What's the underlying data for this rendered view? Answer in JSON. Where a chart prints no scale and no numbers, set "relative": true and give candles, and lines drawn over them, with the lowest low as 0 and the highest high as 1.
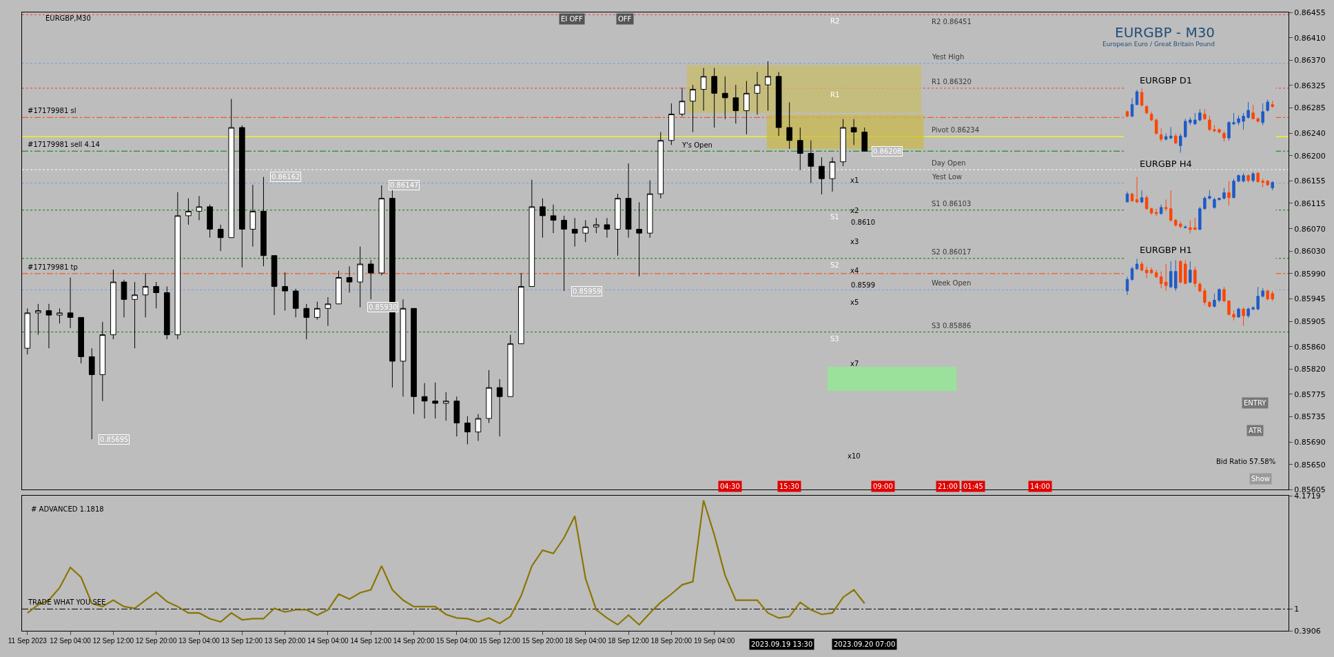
{
  "chart_data": [
    {
      "type": "candlestick",
      "title": "EURGBP - M30",
      "subtitle": "European Euro / Great Britain Pound",
      "color": "#000000",
      "categories": [
        null,
        null,
        null,
        null,
        null,
        null,
        null,
        null,
        null,
        null,
        null,
        null,
        null,
        null,
        null,
        null,
        null,
        null,
        null,
        null,
        null,
        null,
        null,
        null,
        null,
        null,
        null,
        null,
        null,
        null,
        null,
        null,
        null,
        null,
        null,
        null,
        null,
        null,
        null,
        null,
        null,
        null,
        null,
        null,
        null,
        null,
        null,
        null,
        null,
        null,
        null,
        null,
        null,
        null,
        null,
        null,
        null,
        null,
        null,
        null,
        null,
        null,
        null,
        null,
        null,
        null,
        null,
        null,
        null,
        null,
        null,
        null,
        null,
        null,
        null,
        null,
        null,
        null,
        null,
        null,
        null,
        null,
        null,
        null,
        null,
        null,
        null,
        null,
        null,
        null,
        null,
        null,
        null,
        null,
        null,
        null,
        null,
        null,
        null,
        null,
        null,
        null,
        null,
        null,
        null,
        null,
        null,
        null,
        null,
        null,
        null,
        null,
        null,
        null,
        null,
        null,
        null,
        null
      ],
      "ohlc": [
        [
          0.85857,
          0.85928,
          0.85846,
          0.8592
        ],
        [
          0.8592,
          0.85936,
          0.85881,
          0.85924
        ],
        [
          0.85924,
          0.85936,
          0.85857,
          0.85916
        ],
        [
          0.85916,
          0.85928,
          0.85901,
          0.8592
        ],
        [
          0.8592,
          0.85983,
          0.85893,
          0.85912
        ],
        [
          0.85912,
          0.85912,
          0.8583,
          0.85842
        ],
        [
          0.85842,
          0.85857,
          0.85695,
          0.8581
        ],
        [
          0.8581,
          0.85904,
          0.85763,
          0.85881
        ],
        [
          0.85881,
          0.85997,
          0.85873,
          0.85975
        ],
        [
          0.85975,
          0.85979,
          0.85912,
          0.85944
        ],
        [
          0.85944,
          0.85975,
          0.85857,
          0.85952
        ],
        [
          0.85952,
          0.85991,
          0.85912,
          0.85967
        ],
        [
          0.85967,
          0.85975,
          0.85928,
          0.85956
        ],
        [
          0.85956,
          0.85967,
          0.85873,
          0.85881
        ],
        [
          0.85881,
          0.86135,
          0.85873,
          0.86093
        ],
        [
          0.86093,
          0.86124,
          0.86077,
          0.86101
        ],
        [
          0.86101,
          0.86128,
          0.86085,
          0.86109
        ],
        [
          0.86109,
          0.86113,
          0.86054,
          0.86069
        ],
        [
          0.86069,
          0.86077,
          0.8603,
          0.86054
        ],
        [
          0.86054,
          0.86301,
          0.86054,
          0.8625
        ],
        [
          0.8625,
          0.86254,
          0.86001,
          0.86069
        ],
        [
          0.86069,
          0.86148,
          0.86038,
          0.86101
        ],
        [
          0.86101,
          0.86162,
          0.86003,
          0.86022
        ],
        [
          0.86022,
          0.86022,
          0.85916,
          0.85967
        ],
        [
          0.85967,
          0.85992,
          0.85924,
          0.85959
        ],
        [
          0.85959,
          0.85963,
          0.85912,
          0.85928
        ],
        [
          0.85928,
          0.85936,
          0.85873,
          0.85912
        ],
        [
          0.85912,
          0.8594,
          0.85908,
          0.85928
        ],
        [
          0.85928,
          0.85948,
          0.85897,
          0.85936
        ],
        [
          0.85936,
          0.85995,
          0.85936,
          0.85983
        ],
        [
          0.85983,
          0.86003,
          0.85956,
          0.85975
        ],
        [
          0.85975,
          0.86038,
          0.8593,
          0.86007
        ],
        [
          0.86007,
          0.86014,
          0.85944,
          0.85991
        ],
        [
          0.85991,
          0.86147,
          0.85987,
          0.86124
        ],
        [
          0.86124,
          0.8614,
          0.85787,
          0.85834
        ],
        [
          0.85834,
          0.85944,
          0.85771,
          0.85928
        ],
        [
          0.85928,
          0.85928,
          0.8574,
          0.85771
        ],
        [
          0.85771,
          0.85795,
          0.85732,
          0.85763
        ],
        [
          0.85763,
          0.85796,
          0.85732,
          0.85759
        ],
        [
          0.85759,
          0.85779,
          0.85728,
          0.85763
        ],
        [
          0.85763,
          0.85771,
          0.857,
          0.85724
        ],
        [
          0.85724,
          0.85736,
          0.85686,
          0.85708
        ],
        [
          0.85708,
          0.8574,
          0.85692,
          0.85732
        ],
        [
          0.85732,
          0.85818,
          0.85724,
          0.85787
        ],
        [
          0.85787,
          0.85802,
          0.857,
          0.85771
        ],
        [
          0.85771,
          0.85881,
          0.85771,
          0.85865
        ],
        [
          0.85865,
          0.85991,
          0.85865,
          0.85967
        ],
        [
          0.85967,
          0.86157,
          0.85967,
          0.86109
        ],
        [
          0.86109,
          0.86124,
          0.86054,
          0.86093
        ],
        [
          0.86093,
          0.86113,
          0.86062,
          0.86085
        ],
        [
          0.86085,
          0.86093,
          0.85959,
          0.86069
        ],
        [
          0.86069,
          0.86089,
          0.86038,
          0.86062
        ],
        [
          0.86062,
          0.86085,
          0.86046,
          0.86073
        ],
        [
          0.86073,
          0.86089,
          0.86062,
          0.86077
        ],
        [
          0.86077,
          0.86089,
          0.86054,
          0.86069
        ],
        [
          0.86069,
          0.86132,
          0.86022,
          0.86124
        ],
        [
          0.86124,
          0.86186,
          0.86054,
          0.86069
        ],
        [
          0.86069,
          0.86117,
          0.85985,
          0.86062
        ],
        [
          0.86062,
          0.86156,
          0.86054,
          0.86132
        ],
        [
          0.86132,
          0.86242,
          0.86124,
          0.86227
        ],
        [
          0.86227,
          0.86293,
          0.86219,
          0.86274
        ],
        [
          0.86274,
          0.86321,
          0.8627,
          0.86297
        ],
        [
          0.86297,
          0.86326,
          0.86242,
          0.86318
        ],
        [
          0.86318,
          0.86356,
          0.8628,
          0.86341
        ],
        [
          0.86341,
          0.86356,
          0.8625,
          0.86311
        ],
        [
          0.86311,
          0.86341,
          0.86265,
          0.86303
        ],
        [
          0.86303,
          0.86326,
          0.86257,
          0.8628
        ],
        [
          0.8628,
          0.86333,
          0.86238,
          0.86311
        ],
        [
          0.86311,
          0.86349,
          0.86273,
          0.86326
        ],
        [
          0.86326,
          0.86368,
          0.8628,
          0.86341
        ],
        [
          0.86341,
          0.86349,
          0.86235,
          0.8625
        ],
        [
          0.8625,
          0.86295,
          0.86212,
          0.86227
        ],
        [
          0.86227,
          0.8625,
          0.86174,
          0.86204
        ],
        [
          0.86204,
          0.86227,
          0.86151,
          0.86181
        ],
        [
          0.86181,
          0.86197,
          0.86131,
          0.86159
        ],
        [
          0.86159,
          0.86197,
          0.86136,
          0.86189
        ],
        [
          0.86189,
          0.86265,
          0.86181,
          0.8625
        ],
        [
          0.8625,
          0.86265,
          0.86219,
          0.86242
        ],
        [
          0.86242,
          0.8625,
          0.86207,
          0.86208
        ],
        null,
        null,
        null,
        null,
        null,
        null,
        null,
        null,
        null,
        null,
        null,
        null,
        null,
        null,
        null,
        null,
        null,
        null,
        null,
        null,
        null,
        null,
        null,
        null,
        null,
        null,
        null,
        null,
        null,
        null,
        null,
        null,
        null,
        null,
        null,
        null,
        null,
        null,
        null
      ],
      "ylim": [
        0.85605,
        0.86455
      ],
      "yticks": [
        0.86455,
        {
          "value": 0.8641,
          "label": "0.86410"
        },
        {
          "value": 0.8637,
          "label": "0.86370"
        },
        0.86325,
        0.86285,
        {
          "value": 0.8624,
          "label": "0.86240"
        },
        {
          "value": 0.862,
          "label": "0.86200"
        },
        0.86155,
        0.86115,
        {
          "value": 0.8607,
          "label": "0.86070"
        },
        {
          "value": 0.8603,
          "label": "0.86030"
        },
        {
          "value": 0.8599,
          "label": "0.85990"
        },
        0.85945,
        0.85905,
        {
          "value": 0.8586,
          "label": "0.85860"
        },
        {
          "value": 0.8582,
          "label": "0.85820"
        },
        0.85775,
        0.85735,
        {
          "value": 0.8569,
          "label": "0.85690"
        },
        {
          "value": 0.8565,
          "label": "0.85650"
        },
        0.85605
      ],
      "tick_labels": "y",
      "grid": false,
      "ref_lines": [
        {
          "axis": "y",
          "value": 0.86451,
          "label": "R2 0.86451",
          "color": "#ff3030",
          "line_style": "dotted"
        },
        {
          "axis": "y",
          "value": 0.86364,
          "label": "Yest High",
          "color": "#6f9fd8",
          "line_style": "dotted"
        },
        {
          "axis": "y",
          "value": 0.8632,
          "label": "R1 0.86320",
          "color": "#ff3030",
          "line_style": "dotted"
        },
        {
          "axis": "y",
          "value": 0.86268,
          "label": "#17179981 sl",
          "color": "#ff4500",
          "line_style": "dashed"
        },
        {
          "axis": "y",
          "value": 0.86234,
          "label": "Pivot 0.86234",
          "color": "#ffff00",
          "line_style": "solid"
        },
        {
          "axis": "y",
          "value": 0.86208,
          "label": "#17179981 sell 4.14",
          "color": "#008000",
          "line_style": "dashed"
        },
        {
          "axis": "y",
          "value": 0.86175,
          "label": "Day Open",
          "color": "#ffffff",
          "line_style": "dotted"
        },
        {
          "axis": "y",
          "value": 0.86151,
          "label": "Yest Low",
          "color": "#6f9fd8",
          "line_style": "dotted"
        },
        {
          "axis": "y",
          "value": 0.86103,
          "label": "S1 0.86103",
          "color": "#008000",
          "line_style": "dotted"
        },
        {
          "axis": "y",
          "value": 0.86017,
          "label": "S2 0.86017",
          "color": "#008000",
          "line_style": "dotted"
        },
        {
          "axis": "y",
          "value": 0.8599,
          "label": "#17179981 tp",
          "color": "#ff4500",
          "line_style": "dashed"
        },
        {
          "axis": "y",
          "value": 0.85961,
          "label": "Week Open",
          "color": "#6f9fd8",
          "line_style": "dotted"
        },
        {
          "axis": "y",
          "value": 0.85886,
          "label": "S3 0.85886",
          "color": "#008000",
          "line_style": "dotted"
        }
      ],
      "bands": [
        {
          "axis": "y",
          "from": 0.86276,
          "to": 0.86361,
          "color": "#c8bd6a"
        },
        {
          "axis": "y",
          "from": 0.86212,
          "to": 0.86273,
          "color": "#c9b94e"
        },
        {
          "axis": "y",
          "from": 0.85781,
          "to": 0.85824,
          "color": "#90ee90"
        }
      ],
      "annotations": [
        "EURGBP,M30",
        "EI OFF",
        "OFF",
        "ENTRY",
        "ATR",
        "Bid Ratio 57.58%",
        "Show",
        "04:30",
        "15:30",
        "09:00",
        "21:00",
        "01:45",
        "14:00",
        {
          "text": "0.86162",
          "y": 0.86162
        },
        {
          "text": "0.86147",
          "y": 0.86147
        },
        {
          "text": "0.85695",
          "y": 0.85695
        },
        {
          "text": "0.85959",
          "y": 0.85959
        },
        {
          "text": "0.85930",
          "y": 0.8593
        },
        {
          "text": "0.86208",
          "y": 0.86208
        },
        {
          "text": "R2",
          "y": 0.86451
        },
        {
          "text": "R1",
          "y": 0.8632
        },
        {
          "text": "S1",
          "y": 0.86103
        },
        {
          "text": "S2",
          "y": 0.86017
        },
        {
          "text": "S3",
          "y": 0.85886
        },
        "Y's Open",
        "x1",
        "x2",
        "0.8610",
        "x3",
        "x4",
        "0.8599",
        "x5",
        "x7",
        "x10"
      ]
    },
    {
      "type": "line",
      "title": "# ADVANCED 1.1818",
      "color": "#8a7500",
      "categories": [
        "11 Sep 2023",
        null,
        null,
        null,
        "12 Sep 04:00",
        null,
        null,
        null,
        "12 Sep 12:00",
        null,
        null,
        null,
        "12 Sep 20:00",
        null,
        null,
        null,
        "13 Sep 04:00",
        null,
        null,
        null,
        "13 Sep 12:00",
        null,
        null,
        null,
        "13 Sep 20:00",
        null,
        null,
        null,
        "14 Sep 04:00",
        null,
        null,
        null,
        "14 Sep 12:00",
        null,
        null,
        null,
        "14 Sep 20:00",
        null,
        null,
        null,
        "15 Sep 04:00",
        null,
        null,
        null,
        "15 Sep 12:00",
        null,
        null,
        null,
        "15 Sep 20:00",
        null,
        null,
        null,
        "18 Sep 04:00",
        null,
        null,
        null,
        "18 Sep 12:00",
        null,
        null,
        null,
        "18 Sep 20:00",
        null,
        null,
        null,
        "19 Sep 04:00",
        null,
        null,
        null,
        null,
        null,
        null,
        null,
        null,
        null,
        null,
        null,
        null,
        null,
        null,
        null,
        null,
        null,
        null,
        null,
        null,
        null,
        null,
        null,
        null,
        null,
        null,
        null,
        null,
        null,
        null,
        null,
        null,
        null,
        null,
        null,
        null,
        null,
        null,
        null,
        null,
        null,
        null,
        null,
        null,
        null,
        null,
        null,
        null,
        null,
        null,
        null,
        null,
        null
      ],
      "values": [
        0.89,
        1.12,
        1.25,
        1.6,
        2.17,
        1.89,
        1.16,
        1.07,
        1.25,
        1.07,
        1.02,
        1.25,
        1.47,
        1.21,
        1.07,
        0.89,
        0.89,
        0.73,
        0.64,
        0.89,
        0.7,
        0.73,
        0.73,
        1.02,
        0.92,
        0.98,
        0.98,
        0.83,
        0.98,
        1.42,
        1.28,
        1.46,
        1.54,
        2.21,
        1.54,
        1.25,
        1.07,
        1.07,
        1.07,
        0.85,
        0.75,
        0.73,
        0.64,
        0.75,
        0.6,
        0.79,
        1.37,
        2.21,
        2.65,
        2.56,
        3.0,
        3.61,
        1.86,
        0.98,
        0.75,
        0.56,
        0.83,
        0.56,
        0.89,
        1.19,
        1.42,
        1.68,
        1.77,
        4.05,
        3.08,
        1.95,
        1.25,
        1.25,
        1.25,
        0.89,
        0.75,
        0.79,
        1.19,
        0.98,
        0.85,
        0.89,
        1.33,
        1.54,
        1.16,
        null,
        null,
        null,
        null,
        null,
        null,
        null,
        null,
        null,
        null,
        null,
        null,
        null,
        null,
        null,
        null,
        null,
        null,
        null,
        null,
        null,
        null,
        null,
        null,
        null,
        null,
        null,
        null,
        null,
        null,
        null,
        null,
        null,
        null,
        null,
        null,
        null,
        null,
        null
      ],
      "ylim": [
        0.3906,
        4.1719
      ],
      "yticks": [
        4.1719,
        1,
        0.3906
      ],
      "grid": false,
      "line_style": "solid",
      "ref_lines": [
        {
          "axis": "y",
          "value": 1,
          "label": "TRADE WHAT YOU SEE",
          "color": "#000000",
          "line_style": "dashed"
        }
      ],
      "annotations": [
        "2023.09.19 13:30",
        "2023.09.20 07:00"
      ]
    },
    {
      "type": "candlestick",
      "title": "EURGBP D1",
      "relative": true,
      "tick_labels": false,
      "categories": [
        null,
        null,
        null,
        null,
        null,
        null,
        null,
        null,
        null,
        null,
        null,
        null,
        null,
        null,
        null,
        null,
        null,
        null,
        null,
        null,
        null,
        null,
        null,
        null,
        null,
        null,
        null,
        null,
        null,
        null,
        null
      ],
      "ohlc": [
        [
          0.64,
          0.66,
          0.55,
          0.57
        ],
        [
          0.57,
          0.85,
          0.55,
          0.75
        ],
        [
          0.75,
          0.98,
          0.74,
          0.95
        ],
        [
          0.94,
          1,
          0.72,
          0.74
        ],
        [
          0.72,
          0.74,
          0.6,
          0.62
        ],
        [
          0.6,
          0.64,
          0.49,
          0.51
        ],
        [
          0.51,
          0.53,
          0.28,
          0.3
        ],
        [
          0.28,
          0.38,
          0.17,
          0.21
        ],
        [
          0.21,
          0.3,
          0.19,
          0.25
        ],
        [
          0.23,
          0.4,
          0.21,
          0.26
        ],
        [
          0.26,
          0.3,
          0.13,
          0.15
        ],
        [
          0.11,
          0.3,
          0,
          0.26
        ],
        [
          0.25,
          0.53,
          0.23,
          0.49
        ],
        [
          0.47,
          0.55,
          0.43,
          0.51
        ],
        [
          0.45,
          0.62,
          0.43,
          0.51
        ],
        [
          0.51,
          0.68,
          0.49,
          0.62
        ],
        [
          0.6,
          0.68,
          0.51,
          0.53
        ],
        [
          0.51,
          0.58,
          0.34,
          0.36
        ],
        [
          0.36,
          0.43,
          0.32,
          0.34
        ],
        [
          0.36,
          0.38,
          0.3,
          0.32
        ],
        [
          0.3,
          0.34,
          0.17,
          0.23
        ],
        [
          0.23,
          0.49,
          0.19,
          0.47
        ],
        [
          0.45,
          0.62,
          0.43,
          0.47
        ],
        [
          0.47,
          0.58,
          0.43,
          0.53
        ],
        [
          0.49,
          0.62,
          0.36,
          0.57
        ],
        [
          0.55,
          0.79,
          0.53,
          0.66
        ],
        [
          0.62,
          0.75,
          0.53,
          0.53
        ],
        [
          0.53,
          0.55,
          0.47,
          0.49
        ],
        [
          0.47,
          0.77,
          0.43,
          0.64
        ],
        [
          0.66,
          0.83,
          0.64,
          0.79
        ],
        [
          0.75,
          0.81,
          0.7,
          0.72
        ]
      ],
      "colors": [
        "#ff4500",
        "#1e5bc6",
        "#1e5bc6",
        "#ff4500",
        "#ff4500",
        "#ff4500",
        "#ff4500",
        "#ff4500",
        "#1e5bc6",
        "#1e5bc6",
        "#ff4500",
        "#1e5bc6",
        "#1e5bc6",
        "#1e5bc6",
        "#1e5bc6",
        "#1e5bc6",
        "#ff4500",
        "#ff4500",
        "#ff4500",
        "#ff4500",
        "#ff4500",
        "#1e5bc6",
        "#1e5bc6",
        "#1e5bc6",
        "#1e5bc6",
        "#1e5bc6",
        "#ff4500",
        "#ff4500",
        "#1e5bc6",
        "#1e5bc6",
        "#ff4500"
      ]
    },
    {
      "type": "candlestick",
      "title": "EURGBP H4",
      "relative": true,
      "tick_labels": false,
      "categories": [
        null,
        null,
        null,
        null,
        null,
        null,
        null,
        null,
        null,
        null,
        null,
        null,
        null,
        null,
        null,
        null,
        null,
        null,
        null,
        null,
        null,
        null,
        null,
        null,
        null,
        null,
        null,
        null,
        null,
        null,
        null
      ],
      "ohlc": [
        [
          0.51,
          0.68,
          0.51,
          0.64
        ],
        [
          0.64,
          0.66,
          0.51,
          0.53
        ],
        [
          0.55,
          0.92,
          0.49,
          0.51
        ],
        [
          0.51,
          0.7,
          0.49,
          0.58
        ],
        [
          0.58,
          0.62,
          0.38,
          0.4
        ],
        [
          0.4,
          0.42,
          0.3,
          0.33
        ],
        [
          0.34,
          0.4,
          0.28,
          0.32
        ],
        [
          0.32,
          0.47,
          0.3,
          0.42
        ],
        [
          0.42,
          0.55,
          0.36,
          0.4
        ],
        [
          0.4,
          0.7,
          0.19,
          0.21
        ],
        [
          0.21,
          0.23,
          0.11,
          0.13
        ],
        [
          0.15,
          0.19,
          0.08,
          0.11
        ],
        [
          0.09,
          0.13,
          0.08,
          0.1
        ],
        [
          0.09,
          0.21,
          0,
          0.06
        ],
        [
          0.09,
          0.25,
          0.06,
          0.06
        ],
        [
          0.06,
          0.43,
          0.06,
          0.4
        ],
        [
          0.4,
          0.6,
          0.38,
          0.57
        ],
        [
          0.57,
          0.7,
          0.55,
          0.6
        ],
        [
          0.42,
          0.58,
          0.4,
          0.55
        ],
        [
          0.55,
          0.58,
          0.53,
          0.57
        ],
        [
          0.57,
          0.74,
          0.55,
          0.66
        ],
        [
          0.66,
          0.85,
          0.45,
          0.58
        ],
        [
          0.58,
          0.89,
          0.57,
          0.85
        ],
        [
          0.85,
          0.96,
          0.83,
          0.94
        ],
        [
          0.85,
          0.98,
          0.83,
          0.94
        ],
        [
          0.94,
          0.96,
          0.83,
          0.86
        ],
        [
          0.86,
          1,
          0.83,
          0.97
        ],
        [
          0.98,
          1,
          0.83,
          0.84
        ],
        [
          0.85,
          0.89,
          0.75,
          0.83
        ],
        [
          0.85,
          0.87,
          0.77,
          0.79
        ],
        [
          0.74,
          0.85,
          0.7,
          0.83
        ]
      ],
      "colors": [
        "#1e5bc6",
        "#ff4500",
        "#ff4500",
        "#1e5bc6",
        "#ff4500",
        "#ff4500",
        "#ff4500",
        "#1e5bc6",
        "#ff4500",
        "#ff4500",
        "#ff4500",
        "#ff4500",
        "#1e5bc6",
        "#ff4500",
        "#ff4500",
        "#1e5bc6",
        "#1e5bc6",
        "#1e5bc6",
        "#1e5bc6",
        "#1e5bc6",
        "#1e5bc6",
        "#ff4500",
        "#1e5bc6",
        "#1e5bc6",
        "#1e5bc6",
        "#ff4500",
        "#1e5bc6",
        "#ff4500",
        "#ff4500",
        "#ff4500",
        "#1e5bc6"
      ]
    },
    {
      "type": "candlestick",
      "title": "EURGBP H1",
      "relative": true,
      "tick_labels": false,
      "categories": [
        null,
        null,
        null,
        null,
        null,
        null,
        null,
        null,
        null,
        null,
        null,
        null,
        null,
        null,
        null,
        null,
        null,
        null,
        null,
        null,
        null,
        null,
        null,
        null,
        null,
        null,
        null,
        null,
        null,
        null,
        null
      ],
      "ohlc": [
        [
          0.52,
          0.73,
          0.46,
          0.69
        ],
        [
          0.69,
          0.88,
          0.67,
          0.85
        ],
        [
          0.85,
          1,
          0.83,
          0.92
        ],
        [
          0.92,
          0.96,
          0.81,
          0.83
        ],
        [
          0.83,
          0.88,
          0.71,
          0.79
        ],
        [
          0.83,
          0.87,
          0.77,
          0.79
        ],
        [
          0.79,
          0.83,
          0.71,
          0.73
        ],
        [
          0.73,
          0.81,
          0.56,
          0.63
        ],
        [
          0.65,
          0.92,
          0.52,
          0.6
        ],
        [
          0.58,
          0.96,
          0.56,
          0.81
        ],
        [
          0.56,
          0.98,
          0.52,
          0.81
        ],
        [
          0.96,
          0.98,
          0.63,
          0.65
        ],
        [
          0.92,
          0.98,
          0.62,
          0.63
        ],
        [
          0.65,
          0.96,
          0.63,
          0.83
        ],
        [
          0.83,
          0.88,
          0.58,
          0.63
        ],
        [
          0.62,
          0.65,
          0.5,
          0.52
        ],
        [
          0.52,
          0.56,
          0.31,
          0.35
        ],
        [
          0.35,
          0.37,
          0.27,
          0.29
        ],
        [
          0.29,
          0.48,
          0.27,
          0.38
        ],
        [
          0.38,
          0.56,
          0.35,
          0.54
        ],
        [
          0.54,
          0.58,
          0.35,
          0.37
        ],
        [
          0.37,
          0.38,
          0.15,
          0.17
        ],
        [
          0.17,
          0.23,
          0.08,
          0.13
        ],
        [
          0.13,
          0.27,
          0.12,
          0.25
        ],
        [
          0.25,
          0.27,
          0,
          0.15
        ],
        [
          0.15,
          0.27,
          0.12,
          0.25
        ],
        [
          0.25,
          0.29,
          0.23,
          0.27
        ],
        [
          0.25,
          0.58,
          0.23,
          0.44
        ],
        [
          0.44,
          0.56,
          0.42,
          0.52
        ],
        [
          0.52,
          0.54,
          0.38,
          0.4
        ],
        [
          0.48,
          0.52,
          0.37,
          0.4
        ]
      ],
      "colors": [
        "#1e5bc6",
        "#1e5bc6",
        "#1e5bc6",
        "#ff4500",
        "#ff4500",
        "#ff4500",
        "#ff4500",
        "#ff4500",
        "#ff4500",
        "#1e5bc6",
        "#1e5bc6",
        "#ff4500",
        "#ff4500",
        "#1e5bc6",
        "#ff4500",
        "#ff4500",
        "#ff4500",
        "#ff4500",
        "#1e5bc6",
        "#1e5bc6",
        "#ff4500",
        "#ff4500",
        "#ff4500",
        "#1e5bc6",
        "#ff4500",
        "#1e5bc6",
        "#1e5bc6",
        "#1e5bc6",
        "#1e5bc6",
        "#ff4500",
        "#ff4500"
      ]
    }
  ]
}
